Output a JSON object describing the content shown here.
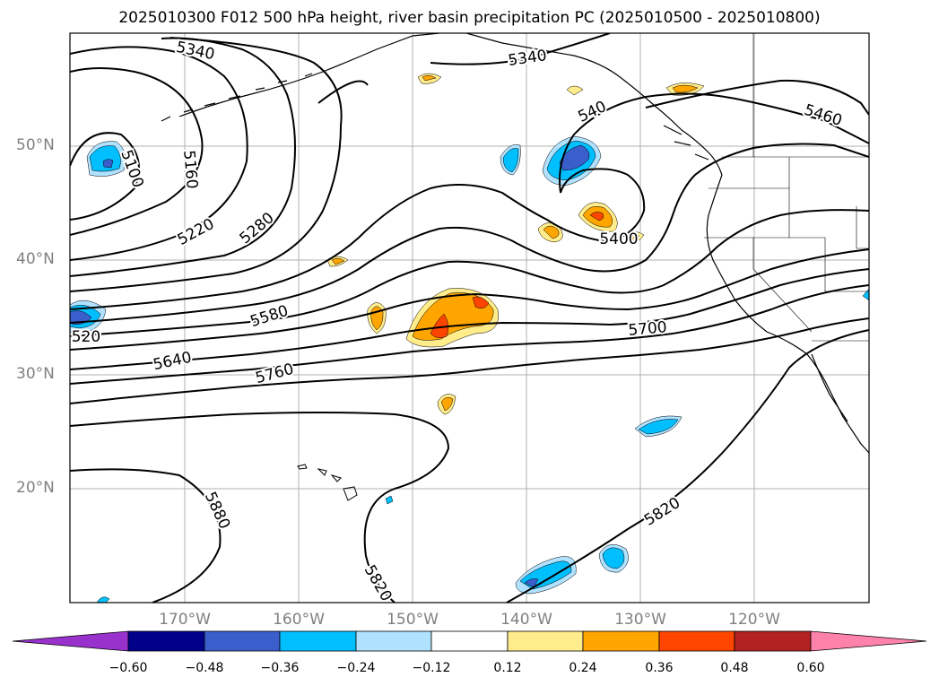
{
  "title": "2025010300 F012 500 hPa height, river basin precipitation PC (2025010500 - 2025010800)",
  "map": {
    "latitude_labels": [
      "50°N",
      "40°N",
      "30°N",
      "20°N"
    ],
    "longitude_labels": [
      "170°W",
      "160°W",
      "150°W",
      "140°W",
      "130°W",
      "120°W"
    ],
    "contour_labels": [
      "5340",
      "5340",
      "5100",
      "5160",
      "5220",
      "5280",
      "540",
      "5460",
      "5400",
      "5580",
      "5640",
      "5760",
      "5700",
      "5880",
      "5820",
      "5820",
      "520"
    ],
    "gridlines": true,
    "coastlines": true
  },
  "colorbar": {
    "tick_labels": [
      "−0.60",
      "−0.48",
      "−0.36",
      "−0.24",
      "−0.12",
      "0.12",
      "0.24",
      "0.36",
      "0.48",
      "0.60"
    ],
    "colors": [
      "#9932cc",
      "#00008b",
      "#3a5fcd",
      "#00bfff",
      "#b0e2ff",
      "#ffffff",
      "#ffec8b",
      "#ffa500",
      "#ff4500",
      "#b22222",
      "#ff82ab"
    ],
    "extend": "both"
  }
}
